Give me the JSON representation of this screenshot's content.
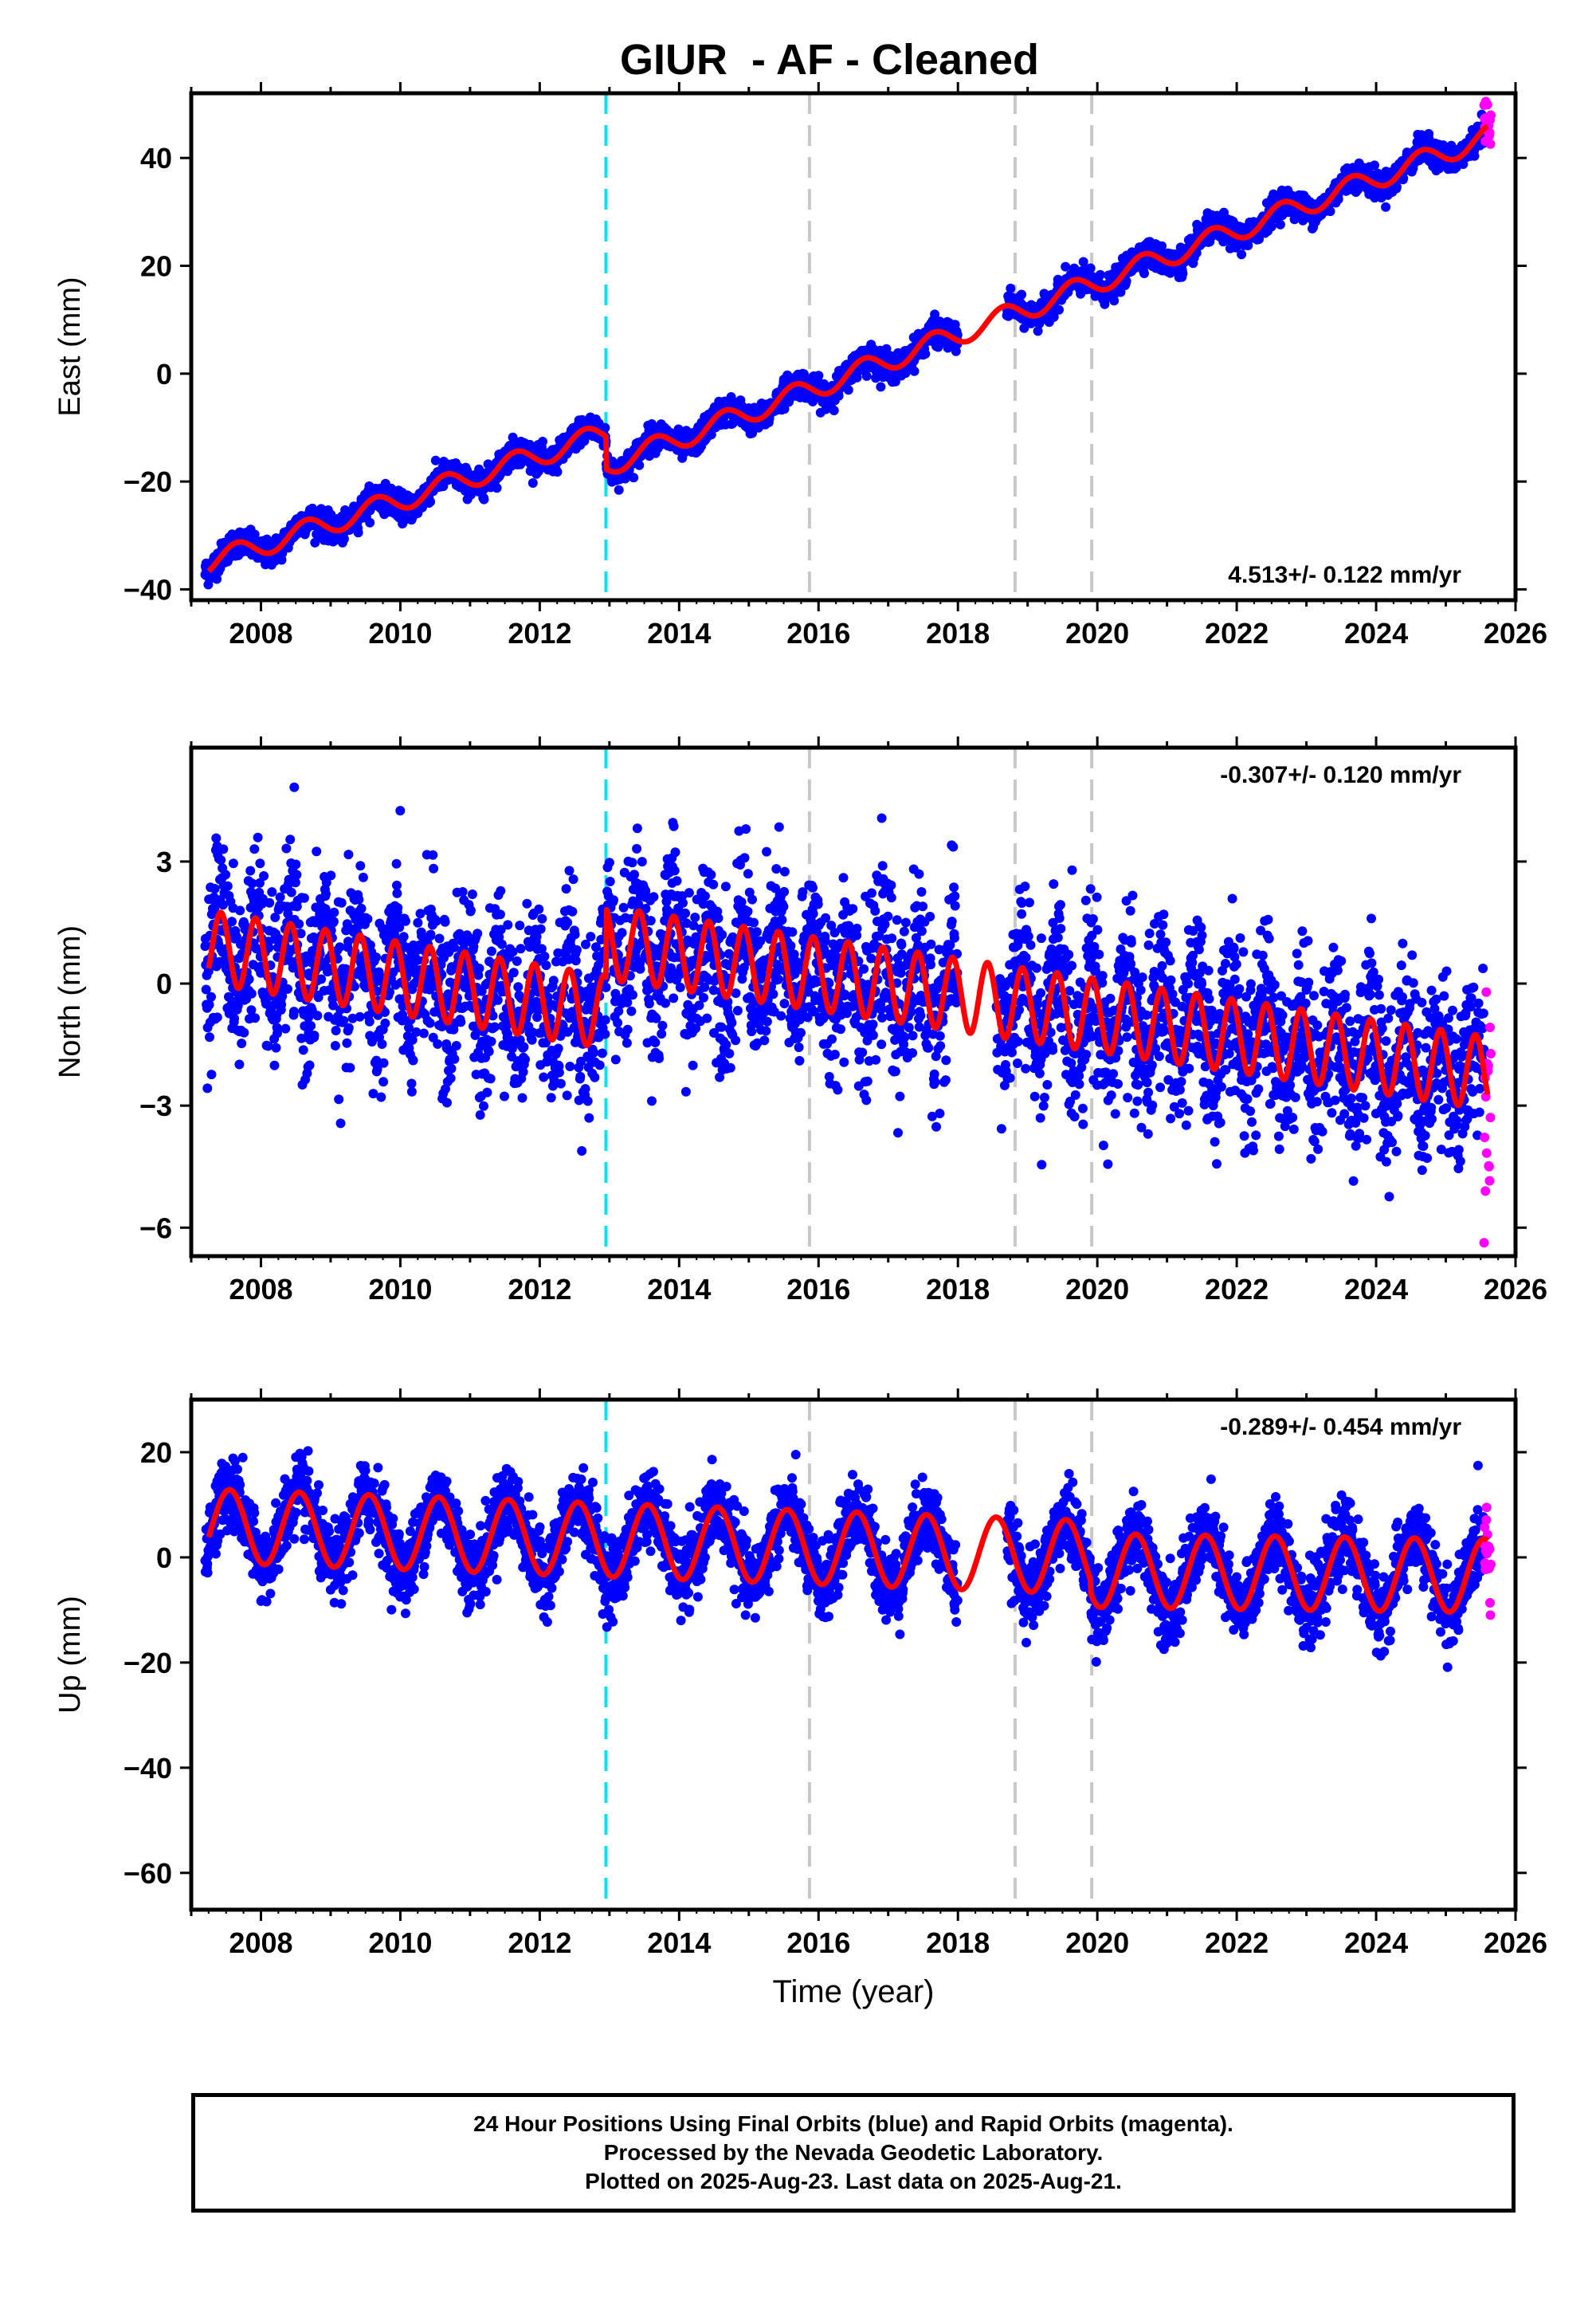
{
  "chart_data": [
    {
      "type": "scatter",
      "title": "GIUR  - AF - Cleaned",
      "ylabel": "East (mm)",
      "xlabel": "",
      "xlim": [
        2007.0,
        2026.0
      ],
      "ylim": [
        -42,
        52
      ],
      "yticks": [
        -40,
        -20,
        0,
        20,
        40
      ],
      "xticks": [
        2008,
        2010,
        2012,
        2014,
        2016,
        2018,
        2020,
        2022,
        2024,
        2026
      ],
      "rate_label": "4.513+/- 0.122 mm/yr",
      "rate_position": "bottom-right",
      "grid": false,
      "reference_lines": [
        {
          "x": 2012.95,
          "color": "#00e5ee",
          "style": "dashed"
        },
        {
          "x": 2015.87,
          "color": "#c8c8c8",
          "style": "dashed"
        },
        {
          "x": 2018.82,
          "color": "#c8c8c8",
          "style": "dashed"
        },
        {
          "x": 2019.92,
          "color": "#c8c8c8",
          "style": "dashed"
        }
      ],
      "model": {
        "trend": [
          [
            2007.25,
            -35.0
          ],
          [
            2012.95,
            -11.0
          ],
          [
            2012.96,
            -17.0
          ],
          [
            2025.6,
            44.0
          ]
        ],
        "amplitude": 2.0,
        "period": 1.0,
        "phase": 2007.4
      },
      "series": [
        {
          "name": "Final Orbits",
          "color": "#0000ff",
          "range": [
            2007.2,
            2025.55
          ],
          "scatter": 1.2,
          "gap": [
            2018.0,
            2018.7
          ]
        },
        {
          "name": "Rapid Orbits",
          "color": "#ff00ff",
          "range": [
            2025.55,
            2025.65
          ],
          "scatter": 2.5
        }
      ],
      "colors": {
        "final": "#0000ff",
        "rapid": "#ff00ff",
        "model": "#ff0000"
      }
    },
    {
      "type": "scatter",
      "title": "",
      "ylabel": "North (mm)",
      "xlabel": "",
      "xlim": [
        2007.0,
        2026.0
      ],
      "ylim": [
        -6.7,
        5.8
      ],
      "yticks": [
        -6,
        -3,
        0,
        3
      ],
      "xticks": [
        2008,
        2010,
        2012,
        2014,
        2016,
        2018,
        2020,
        2022,
        2024,
        2026
      ],
      "rate_label": "-0.307+/- 0.120 mm/yr",
      "rate_position": "top-right",
      "grid": false,
      "reference_lines": [
        {
          "x": 2012.95,
          "color": "#00e5ee",
          "style": "dashed"
        },
        {
          "x": 2015.87,
          "color": "#c8c8c8",
          "style": "dashed"
        },
        {
          "x": 2018.82,
          "color": "#c8c8c8",
          "style": "dashed"
        },
        {
          "x": 2019.92,
          "color": "#c8c8c8",
          "style": "dashed"
        }
      ],
      "model": {
        "trend": [
          [
            2007.25,
            0.9
          ],
          [
            2012.95,
            -0.7
          ],
          [
            2012.96,
            1.0
          ],
          [
            2025.6,
            -2.2
          ]
        ],
        "amplitude": 0.9,
        "period": 0.5,
        "phase": 2007.3
      },
      "series": [
        {
          "name": "Final Orbits",
          "color": "#0000ff",
          "range": [
            2007.2,
            2025.55
          ],
          "scatter": 1.0,
          "gap": [
            2018.0,
            2018.55
          ]
        },
        {
          "name": "Rapid Orbits",
          "color": "#ff00ff",
          "range": [
            2025.55,
            2025.65
          ],
          "scatter": 1.8
        }
      ],
      "colors": {
        "final": "#0000ff",
        "rapid": "#ff00ff",
        "model": "#ff0000"
      }
    },
    {
      "type": "scatter",
      "title": "",
      "ylabel": "Up (mm)",
      "xlabel": "Time (year)",
      "xlim": [
        2007.0,
        2026.0
      ],
      "ylim": [
        -67,
        30
      ],
      "yticks": [
        -60,
        -40,
        -20,
        0,
        20
      ],
      "xticks": [
        2008,
        2010,
        2012,
        2014,
        2016,
        2018,
        2020,
        2022,
        2024,
        2026
      ],
      "rate_label": "-0.289+/- 0.454 mm/yr",
      "rate_position": "top-right",
      "grid": false,
      "reference_lines": [
        {
          "x": 2012.95,
          "color": "#00e5ee",
          "style": "dashed"
        },
        {
          "x": 2015.87,
          "color": "#c8c8c8",
          "style": "dashed"
        },
        {
          "x": 2018.82,
          "color": "#c8c8c8",
          "style": "dashed"
        },
        {
          "x": 2019.92,
          "color": "#c8c8c8",
          "style": "dashed"
        }
      ],
      "model": {
        "trend": [
          [
            2007.25,
            6.0
          ],
          [
            2019.9,
            0.0
          ],
          [
            2019.91,
            -2.5
          ],
          [
            2025.6,
            -3.5
          ]
        ],
        "amplitude": 7.0,
        "period": 1.0,
        "phase": 2007.3
      },
      "series": [
        {
          "name": "Final Orbits",
          "color": "#0000ff",
          "range": [
            2007.2,
            2025.55
          ],
          "scatter": 3.5,
          "gap": [
            2018.0,
            2018.7
          ]
        },
        {
          "name": "Rapid Orbits",
          "color": "#ff00ff",
          "range": [
            2025.55,
            2025.65
          ],
          "scatter": 5.0
        }
      ],
      "colors": {
        "final": "#0000ff",
        "rapid": "#ff00ff",
        "model": "#ff0000"
      }
    }
  ],
  "footer": {
    "line1": "24 Hour Positions Using Final Orbits (blue) and Rapid Orbits (magenta).",
    "line2": "Processed by the Nevada Geodetic Laboratory.",
    "line3": "Plotted on 2025-Aug-23. Last data on 2025-Aug-21."
  }
}
